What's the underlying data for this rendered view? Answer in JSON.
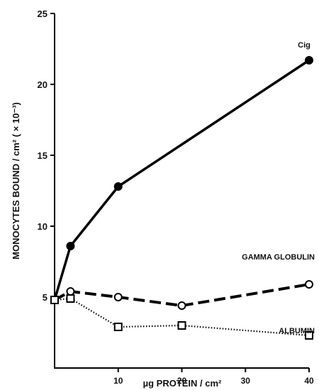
{
  "chart_data": {
    "type": "line",
    "xlabel": "µg PROTEIN / cm²",
    "ylabel": "MONOCYTES BOUND / cm² ( × 10⁻³)",
    "xlim": [
      0,
      40
    ],
    "ylim": [
      0,
      25
    ],
    "x_ticks": [
      10,
      20,
      30,
      40
    ],
    "y_ticks": [
      5,
      10,
      15,
      20,
      25
    ],
    "grid": false,
    "series": [
      {
        "name": "Cig",
        "style": "solid",
        "marker": "filled-circle",
        "color": "#000000",
        "x": [
          0,
          2.5,
          10,
          40
        ],
        "y": [
          4.8,
          8.6,
          12.8,
          21.7
        ]
      },
      {
        "name": "GAMMA GLOBULIN",
        "style": "dashed",
        "marker": "open-circle",
        "color": "#000000",
        "x": [
          0,
          2.5,
          10,
          20,
          40
        ],
        "y": [
          4.8,
          5.4,
          5.0,
          4.4,
          5.9
        ]
      },
      {
        "name": "ALBUMIN",
        "style": "dotted",
        "marker": "open-square",
        "color": "#000000",
        "x": [
          0,
          2.5,
          10,
          20,
          40
        ],
        "y": [
          4.8,
          4.9,
          2.9,
          3.0,
          2.3
        ]
      }
    ]
  }
}
